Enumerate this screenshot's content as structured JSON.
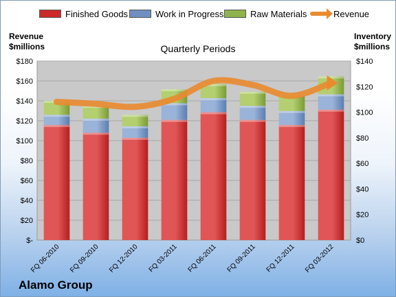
{
  "legend": {
    "finished": "Finished Goods",
    "wip": "Work in Progress",
    "raw": "Raw Materials",
    "revenue": "Revenue"
  },
  "left_axis_title": "Revenue\n$millions",
  "right_axis_title": "Inventory\n$millions",
  "subtitle": "Quarterly Periods",
  "company": "Alamo Group",
  "colors": {
    "finished": "#cc2a2a",
    "wip": "#6f8fc0",
    "raw": "#8fb24a",
    "revenue": "#e98a2f",
    "plot_bg": "#c9c9c9"
  },
  "chart_data": {
    "type": "bar",
    "stacked": true,
    "categories": [
      "FQ 06-2010",
      "FQ 09-2010",
      "FQ 12-2010",
      "FQ 03-2011",
      "FQ 06-2011",
      "FQ 09-2011",
      "FQ 12-2011",
      "FQ 03-2012"
    ],
    "series": [
      {
        "name": "Finished Goods",
        "axis": "right",
        "values": [
          90,
          84,
          80,
          94,
          100,
          94,
          90,
          102
        ]
      },
      {
        "name": "Work in Progress",
        "axis": "right",
        "values": [
          8,
          11,
          9,
          13,
          11,
          11,
          11,
          12
        ]
      },
      {
        "name": "Raw Materials",
        "axis": "right",
        "values": [
          11,
          10,
          9,
          11,
          11,
          11,
          13,
          14
        ]
      },
      {
        "name": "Revenue",
        "axis": "left",
        "type": "line",
        "values": [
          139,
          137,
          134,
          142,
          160,
          156,
          145,
          158
        ]
      }
    ],
    "left_axis": {
      "min": 0,
      "max": 180,
      "step": 20,
      "ticks": [
        "$-",
        "$20",
        "$40",
        "$60",
        "$80",
        "$100",
        "$120",
        "$140",
        "$160",
        "$180"
      ]
    },
    "right_axis": {
      "min": 0,
      "max": 140,
      "step": 20,
      "ticks": [
        "$0",
        "$20",
        "$40",
        "$60",
        "$80",
        "$100",
        "$120",
        "$140"
      ]
    },
    "grid": true
  }
}
